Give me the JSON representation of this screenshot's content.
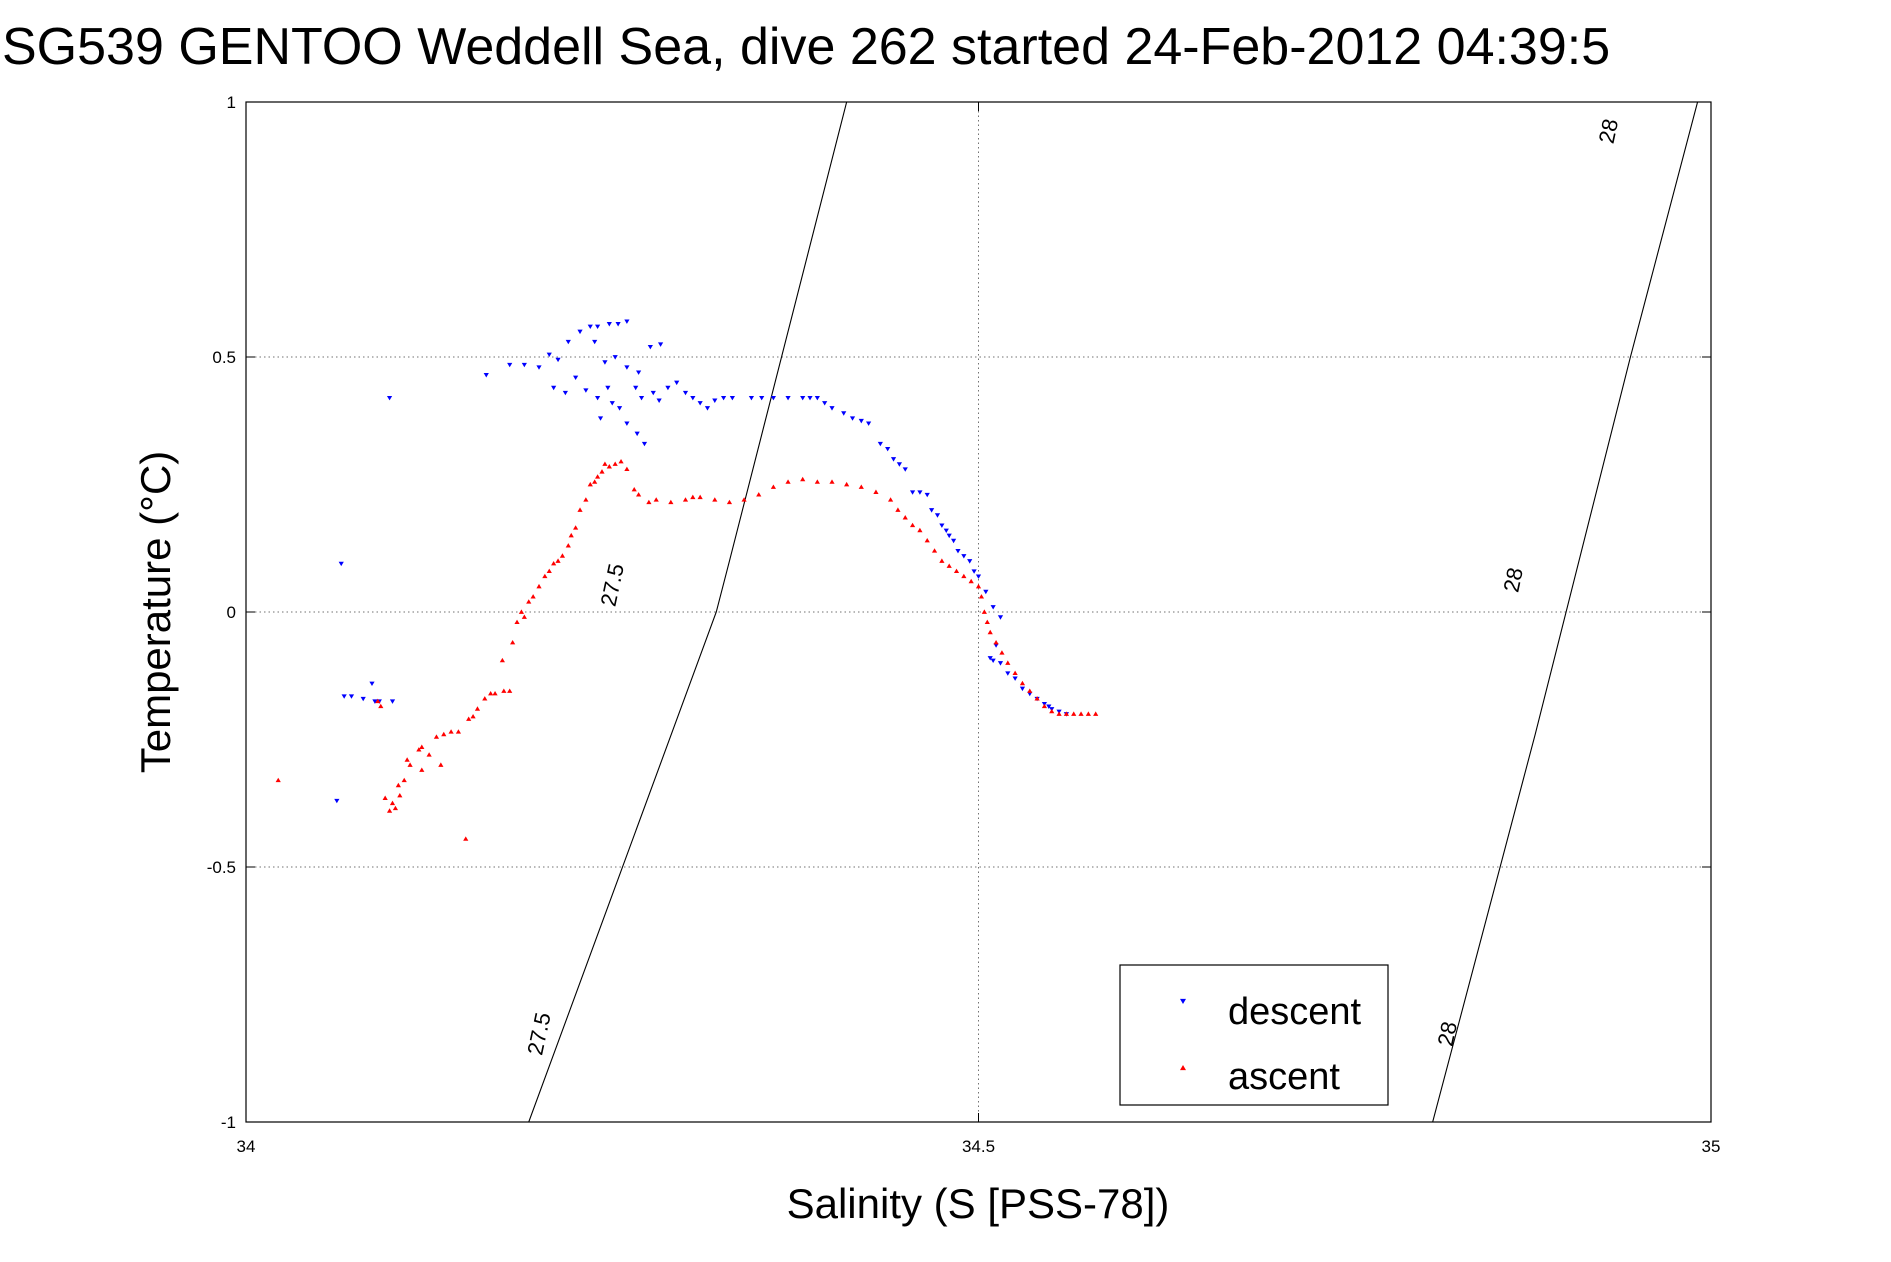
{
  "chart_data": {
    "type": "scatter",
    "title": "SG539 GENTOO Weddell Sea, dive 262 started 24-Feb-2012 04:39:5",
    "xlabel": "Salinity (S [PSS-78])",
    "ylabel": "Temperature (°C)",
    "xlim": [
      34,
      35
    ],
    "ylim": [
      -1,
      1
    ],
    "xticks": [
      34,
      34.5,
      35
    ],
    "xtick_labels": [
      "34",
      "34.5",
      "35"
    ],
    "yticks": [
      -1,
      -0.5,
      0,
      0.5,
      1
    ],
    "ytick_labels": [
      "-1",
      "-0.5",
      "0",
      "0.5",
      "1"
    ],
    "grid": true,
    "legend_position": "bottom-right",
    "density_contours": [
      {
        "level": "27.5",
        "points": [
          [
            34.193,
            -1.0
          ],
          [
            34.321,
            0.0
          ],
          [
            34.33,
            0.1
          ],
          [
            34.41,
            1.0
          ]
        ],
        "labels": [
          {
            "x": 34.205,
            "y": -0.83
          },
          {
            "x": 34.255,
            "y": 0.05
          }
        ]
      },
      {
        "level": "28",
        "points": [
          [
            34.81,
            -1.0
          ],
          [
            34.88,
            -0.24
          ],
          [
            34.945,
            0.5
          ],
          [
            35.0,
            1.1
          ]
        ],
        "labels": [
          {
            "x": 34.825,
            "y": -0.83
          },
          {
            "x": 34.87,
            "y": 0.06
          },
          {
            "x": 34.935,
            "y": 0.94
          }
        ]
      }
    ],
    "series": [
      {
        "name": "descent",
        "color": "#0000ff",
        "marker": "triangle-down",
        "points": [
          [
            34.062,
            -0.37
          ],
          [
            34.065,
            0.095
          ],
          [
            34.067,
            -0.165
          ],
          [
            34.072,
            -0.165
          ],
          [
            34.08,
            -0.17
          ],
          [
            34.086,
            -0.14
          ],
          [
            34.088,
            -0.175
          ],
          [
            34.091,
            -0.175
          ],
          [
            34.1,
            -0.175
          ],
          [
            34.098,
            0.42
          ],
          [
            34.164,
            0.465
          ],
          [
            34.18,
            0.485
          ],
          [
            34.19,
            0.485
          ],
          [
            34.2,
            0.48
          ],
          [
            34.207,
            0.505
          ],
          [
            34.213,
            0.495
          ],
          [
            34.22,
            0.53
          ],
          [
            34.228,
            0.55
          ],
          [
            34.235,
            0.56
          ],
          [
            34.24,
            0.56
          ],
          [
            34.248,
            0.565
          ],
          [
            34.254,
            0.565
          ],
          [
            34.26,
            0.57
          ],
          [
            34.238,
            0.53
          ],
          [
            34.245,
            0.49
          ],
          [
            34.252,
            0.5
          ],
          [
            34.26,
            0.48
          ],
          [
            34.268,
            0.47
          ],
          [
            34.283,
            0.525
          ],
          [
            34.276,
            0.52
          ],
          [
            34.21,
            0.44
          ],
          [
            34.218,
            0.43
          ],
          [
            34.225,
            0.46
          ],
          [
            34.232,
            0.435
          ],
          [
            34.24,
            0.42
          ],
          [
            34.247,
            0.44
          ],
          [
            34.25,
            0.41
          ],
          [
            34.255,
            0.4
          ],
          [
            34.242,
            0.38
          ],
          [
            34.26,
            0.37
          ],
          [
            34.267,
            0.35
          ],
          [
            34.272,
            0.33
          ],
          [
            34.266,
            0.44
          ],
          [
            34.27,
            0.42
          ],
          [
            34.278,
            0.43
          ],
          [
            34.282,
            0.415
          ],
          [
            34.288,
            0.44
          ],
          [
            34.294,
            0.45
          ],
          [
            34.3,
            0.43
          ],
          [
            34.305,
            0.42
          ],
          [
            34.31,
            0.41
          ],
          [
            34.315,
            0.4
          ],
          [
            34.32,
            0.415
          ],
          [
            34.326,
            0.42
          ],
          [
            34.332,
            0.42
          ],
          [
            34.345,
            0.42
          ],
          [
            34.352,
            0.42
          ],
          [
            34.36,
            0.42
          ],
          [
            34.37,
            0.42
          ],
          [
            34.38,
            0.42
          ],
          [
            34.385,
            0.42
          ],
          [
            34.39,
            0.42
          ],
          [
            34.395,
            0.41
          ],
          [
            34.4,
            0.4
          ],
          [
            34.408,
            0.39
          ],
          [
            34.414,
            0.38
          ],
          [
            34.42,
            0.375
          ],
          [
            34.425,
            0.37
          ],
          [
            34.433,
            0.33
          ],
          [
            34.438,
            0.32
          ],
          [
            34.442,
            0.3
          ],
          [
            34.446,
            0.29
          ],
          [
            34.45,
            0.28
          ],
          [
            34.455,
            0.235
          ],
          [
            34.46,
            0.235
          ],
          [
            34.465,
            0.23
          ],
          [
            34.468,
            0.2
          ],
          [
            34.472,
            0.19
          ],
          [
            34.475,
            0.17
          ],
          [
            34.478,
            0.16
          ],
          [
            34.48,
            0.15
          ],
          [
            34.483,
            0.14
          ],
          [
            34.486,
            0.12
          ],
          [
            34.49,
            0.11
          ],
          [
            34.494,
            0.1
          ],
          [
            34.497,
            0.08
          ],
          [
            34.5,
            0.07
          ],
          [
            34.505,
            0.04
          ],
          [
            34.51,
            0.01
          ],
          [
            34.515,
            -0.01
          ],
          [
            34.512,
            -0.065
          ],
          [
            34.508,
            -0.09
          ],
          [
            34.51,
            -0.095
          ],
          [
            34.515,
            -0.1
          ],
          [
            34.52,
            -0.12
          ],
          [
            34.525,
            -0.13
          ],
          [
            34.53,
            -0.15
          ],
          [
            34.535,
            -0.16
          ],
          [
            34.54,
            -0.17
          ],
          [
            34.545,
            -0.18
          ],
          [
            34.548,
            -0.185
          ],
          [
            34.55,
            -0.19
          ],
          [
            34.555,
            -0.195
          ],
          [
            34.56,
            -0.2
          ]
        ]
      },
      {
        "name": "ascent",
        "color": "#ff0000",
        "marker": "triangle-up",
        "points": [
          [
            34.022,
            -0.33
          ],
          [
            34.09,
            -0.175
          ],
          [
            34.092,
            -0.185
          ],
          [
            34.095,
            -0.365
          ],
          [
            34.098,
            -0.39
          ],
          [
            34.1,
            -0.375
          ],
          [
            34.102,
            -0.385
          ],
          [
            34.105,
            -0.36
          ],
          [
            34.104,
            -0.34
          ],
          [
            34.108,
            -0.33
          ],
          [
            34.11,
            -0.29
          ],
          [
            34.112,
            -0.3
          ],
          [
            34.118,
            -0.27
          ],
          [
            34.12,
            -0.31
          ],
          [
            34.12,
            -0.265
          ],
          [
            34.125,
            -0.28
          ],
          [
            34.13,
            -0.245
          ],
          [
            34.133,
            -0.3
          ],
          [
            34.135,
            -0.24
          ],
          [
            34.14,
            -0.235
          ],
          [
            34.145,
            -0.235
          ],
          [
            34.15,
            -0.445
          ],
          [
            34.152,
            -0.21
          ],
          [
            34.155,
            -0.205
          ],
          [
            34.158,
            -0.19
          ],
          [
            34.163,
            -0.17
          ],
          [
            34.167,
            -0.16
          ],
          [
            34.17,
            -0.16
          ],
          [
            34.176,
            -0.155
          ],
          [
            34.18,
            -0.155
          ],
          [
            34.175,
            -0.095
          ],
          [
            34.182,
            -0.06
          ],
          [
            34.185,
            -0.02
          ],
          [
            34.188,
            0.0
          ],
          [
            34.19,
            -0.01
          ],
          [
            34.193,
            0.02
          ],
          [
            34.196,
            0.03
          ],
          [
            34.2,
            0.05
          ],
          [
            34.204,
            0.07
          ],
          [
            34.207,
            0.08
          ],
          [
            34.21,
            0.095
          ],
          [
            34.213,
            0.1
          ],
          [
            34.216,
            0.11
          ],
          [
            34.22,
            0.13
          ],
          [
            34.222,
            0.15
          ],
          [
            34.225,
            0.165
          ],
          [
            34.228,
            0.2
          ],
          [
            34.232,
            0.22
          ],
          [
            34.235,
            0.25
          ],
          [
            34.238,
            0.255
          ],
          [
            34.24,
            0.265
          ],
          [
            34.243,
            0.275
          ],
          [
            34.245,
            0.29
          ],
          [
            34.248,
            0.285
          ],
          [
            34.252,
            0.29
          ],
          [
            34.256,
            0.295
          ],
          [
            34.26,
            0.28
          ],
          [
            34.265,
            0.24
          ],
          [
            34.268,
            0.23
          ],
          [
            34.275,
            0.215
          ],
          [
            34.28,
            0.22
          ],
          [
            34.29,
            0.215
          ],
          [
            34.3,
            0.22
          ],
          [
            34.305,
            0.225
          ],
          [
            34.31,
            0.225
          ],
          [
            34.32,
            0.22
          ],
          [
            34.33,
            0.215
          ],
          [
            34.34,
            0.22
          ],
          [
            34.35,
            0.23
          ],
          [
            34.36,
            0.245
          ],
          [
            34.37,
            0.255
          ],
          [
            34.38,
            0.26
          ],
          [
            34.39,
            0.255
          ],
          [
            34.4,
            0.255
          ],
          [
            34.41,
            0.25
          ],
          [
            34.42,
            0.245
          ],
          [
            34.43,
            0.235
          ],
          [
            34.44,
            0.22
          ],
          [
            34.445,
            0.2
          ],
          [
            34.45,
            0.185
          ],
          [
            34.455,
            0.17
          ],
          [
            34.46,
            0.16
          ],
          [
            34.465,
            0.14
          ],
          [
            34.47,
            0.12
          ],
          [
            34.475,
            0.1
          ],
          [
            34.48,
            0.09
          ],
          [
            34.485,
            0.08
          ],
          [
            34.49,
            0.07
          ],
          [
            34.495,
            0.06
          ],
          [
            34.5,
            0.05
          ],
          [
            34.502,
            0.03
          ],
          [
            34.504,
            0.0
          ],
          [
            34.506,
            -0.02
          ],
          [
            34.508,
            -0.04
          ],
          [
            34.512,
            -0.06
          ],
          [
            34.516,
            -0.08
          ],
          [
            34.52,
            -0.1
          ],
          [
            34.525,
            -0.12
          ],
          [
            34.53,
            -0.14
          ],
          [
            34.535,
            -0.155
          ],
          [
            34.54,
            -0.17
          ],
          [
            34.545,
            -0.185
          ],
          [
            34.55,
            -0.195
          ],
          [
            34.555,
            -0.2
          ],
          [
            34.56,
            -0.2
          ],
          [
            34.565,
            -0.2
          ],
          [
            34.57,
            -0.2
          ],
          [
            34.575,
            -0.2
          ],
          [
            34.58,
            -0.2
          ]
        ]
      }
    ]
  }
}
